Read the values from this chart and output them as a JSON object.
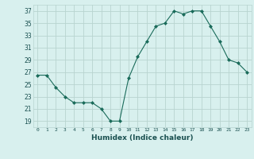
{
  "x": [
    0,
    1,
    2,
    3,
    4,
    5,
    6,
    7,
    8,
    9,
    10,
    11,
    12,
    13,
    14,
    15,
    16,
    17,
    18,
    19,
    20,
    21,
    22,
    23
  ],
  "y": [
    26.5,
    26.5,
    24.5,
    23.0,
    22.0,
    22.0,
    22.0,
    21.0,
    19.0,
    19.0,
    26.0,
    29.5,
    32.0,
    34.5,
    35.0,
    37.0,
    36.5,
    37.0,
    37.0,
    34.5,
    32.0,
    29.0,
    28.5,
    27.0
  ],
  "line_color": "#1a6b5a",
  "marker": "D",
  "marker_size": 2,
  "xlabel": "Humidex (Indice chaleur)",
  "ylim": [
    18,
    38
  ],
  "xlim": [
    -0.5,
    23.5
  ],
  "yticks": [
    19,
    21,
    23,
    25,
    27,
    29,
    31,
    33,
    35,
    37
  ],
  "xticks": [
    0,
    1,
    2,
    3,
    4,
    5,
    6,
    7,
    8,
    9,
    10,
    11,
    12,
    13,
    14,
    15,
    16,
    17,
    18,
    19,
    20,
    21,
    22,
    23
  ],
  "xtick_labels": [
    "0",
    "1",
    "2",
    "3",
    "4",
    "5",
    "6",
    "7",
    "8",
    "9",
    "10",
    "11",
    "12",
    "13",
    "14",
    "15",
    "16",
    "17",
    "18",
    "19",
    "20",
    "21",
    "22",
    "23"
  ],
  "bg_color": "#d8f0ee",
  "grid_color": "#b8d4d0",
  "font_color": "#1a5050"
}
